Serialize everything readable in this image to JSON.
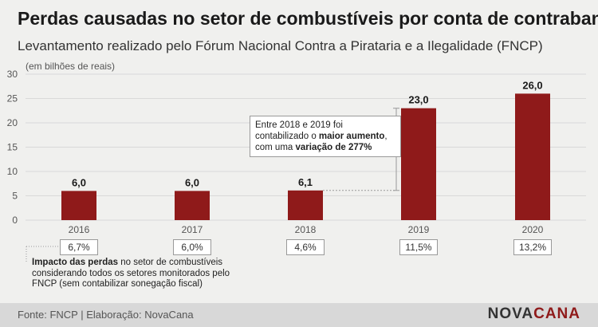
{
  "title": "Perdas causadas no setor de combustíveis por conta de contrabando",
  "subtitle": "Levantamento realizado pelo Fórum Nacional Contra a Pirataria e a Ilegalidade (FNCP)",
  "chart_data": {
    "type": "bar",
    "unit_label": "(em bilhões de reais)",
    "categories": [
      "2016",
      "2017",
      "2018",
      "2019",
      "2020"
    ],
    "values": [
      6.0,
      6.0,
      6.1,
      23.0,
      26.0
    ],
    "value_labels": [
      "6,0",
      "6,0",
      "6,1",
      "23,0",
      "26,0"
    ],
    "yticks": [
      "0",
      "5",
      "10",
      "15",
      "20",
      "25",
      "30"
    ],
    "ylim": [
      0,
      30
    ],
    "grid": true,
    "bar_color": "#8f1a1a",
    "impact_percentages": [
      "6,7%",
      "6,0%",
      "4,6%",
      "11,5%",
      "13,2%"
    ]
  },
  "callout": {
    "line1": "Entre 2018 e 2019 foi",
    "line2_prefix": "contabilizado o ",
    "line2_bold": "maior aumento",
    "line2_suffix": ",",
    "line3_prefix": "com uma ",
    "line3_bold": "variação de 277%"
  },
  "note": {
    "bold": "Impacto das perdas",
    "text": " no setor de combustíveis considerando todos os setores monitorados pelo FNCP (sem contabilizar sonegação fiscal)"
  },
  "footer": {
    "source": "Fonte: FNCP | Elaboração: NovaCana",
    "logo_part1": "NOVA",
    "logo_part2": "CANA"
  },
  "colors": {
    "bar": "#8f1a1a",
    "background": "#f0f0ee",
    "footer_bg": "#d8d8d8"
  }
}
